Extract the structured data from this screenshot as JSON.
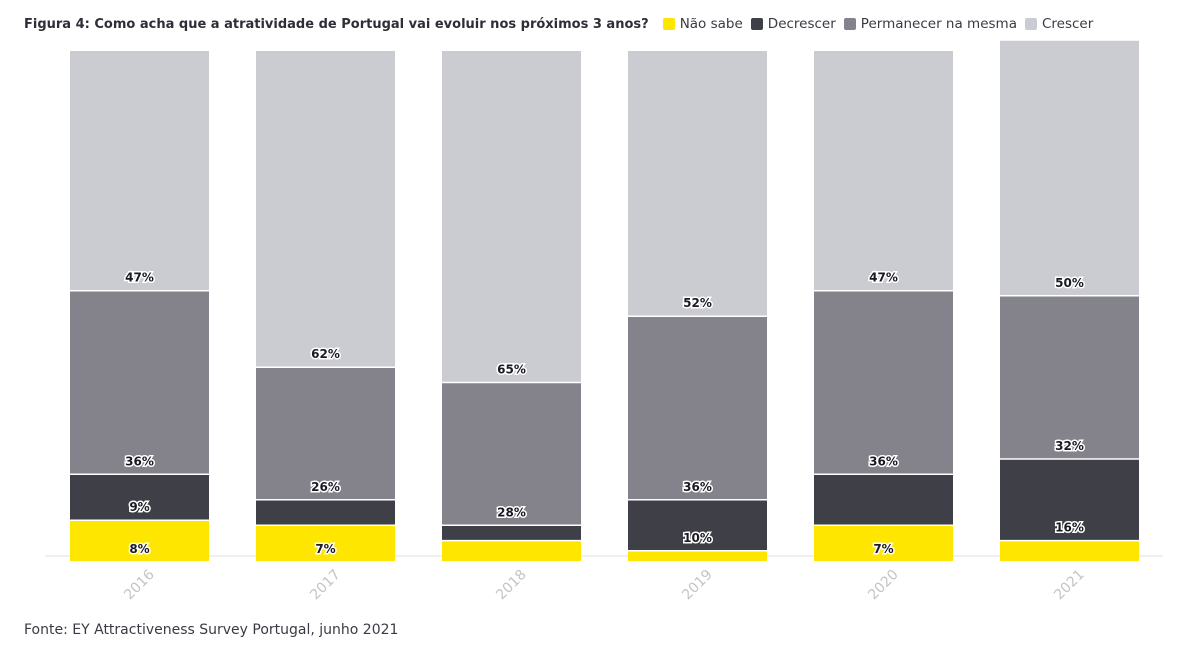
{
  "chart_data": {
    "type": "bar",
    "stacked": true,
    "title": "Figura 4: Como acha que a atratividade de Portugal vai evoluir nos próximos 3 anos?",
    "categories": [
      "2016",
      "2017",
      "2018",
      "2019",
      "2020",
      "2021"
    ],
    "series": [
      {
        "name": "Não sabe",
        "color": "#ffe600",
        "values": [
          8,
          7,
          4,
          2,
          7,
          4
        ],
        "labels": [
          "8%",
          "7%",
          "",
          "",
          "7%",
          ""
        ]
      },
      {
        "name": "Decrescer",
        "color": "#3f3f48",
        "values": [
          9,
          5,
          3,
          10,
          10,
          16
        ],
        "labels": [
          "9%",
          "",
          "",
          "10%",
          "",
          "16%"
        ]
      },
      {
        "name": "Permanecer na mesma",
        "color": "#84838c",
        "values": [
          36,
          26,
          28,
          36,
          36,
          32
        ],
        "labels": [
          "36%",
          "26%",
          "28%",
          "36%",
          "36%",
          "32%"
        ]
      },
      {
        "name": "Crescer",
        "color": "#cbcbd2",
        "values": [
          47,
          62,
          65,
          52,
          47,
          50
        ],
        "labels": [
          "47%",
          "62%",
          "65%",
          "52%",
          "47%",
          "50%"
        ]
      }
    ],
    "ylim": [
      0,
      100
    ],
    "grid": false,
    "legend_position": "top"
  },
  "footer": {
    "source": "Fonte: EY Attractiveness Survey Portugal, junho 2021"
  }
}
